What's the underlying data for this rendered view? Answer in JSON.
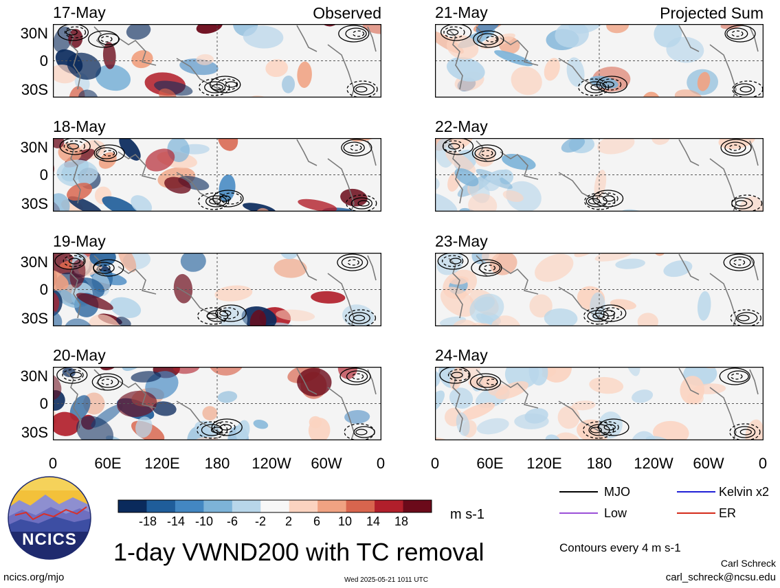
{
  "observed_label": "Observed",
  "projected_label": "Projected Sum",
  "observed_dates": [
    "17-May",
    "18-May",
    "19-May",
    "20-May"
  ],
  "projected_dates": [
    "21-May",
    "22-May",
    "23-May",
    "24-May"
  ],
  "lat_labels": [
    "30N",
    "0",
    "30S"
  ],
  "lon_labels": [
    "0",
    "60E",
    "120E",
    "180",
    "120W",
    "60W",
    "0"
  ],
  "colorbar": {
    "ticks": [
      "-18",
      "-14",
      "-10",
      "-6",
      "-2",
      "2",
      "6",
      "10",
      "14",
      "18"
    ],
    "colors": [
      "#0a2a5c",
      "#1f5d9a",
      "#4387c2",
      "#7db3d8",
      "#b8d6ea",
      "#f7f7f7",
      "#fbd3c0",
      "#f0a282",
      "#d8654e",
      "#b11f2b",
      "#6b0a1a"
    ],
    "units": "m s-1"
  },
  "legend": [
    {
      "label": "MJO",
      "color": "#000000"
    },
    {
      "label": "Kelvin x2",
      "color": "#1f1fd6"
    },
    {
      "label": "Low",
      "color": "#9a4fd8"
    },
    {
      "label": "ER",
      "color": "#d42a1a"
    }
  ],
  "contour_note": "Contours every 4 m s-1",
  "main_title": "1-day VWND200 with TC removal",
  "logo_text": "NCICS",
  "site_link": "ncics.org/mjo",
  "timestamp": "Wed 2025-05-21 1011 UTC",
  "author": "Carl Schreck",
  "email": "carl_schreck@ncsu.edu"
}
